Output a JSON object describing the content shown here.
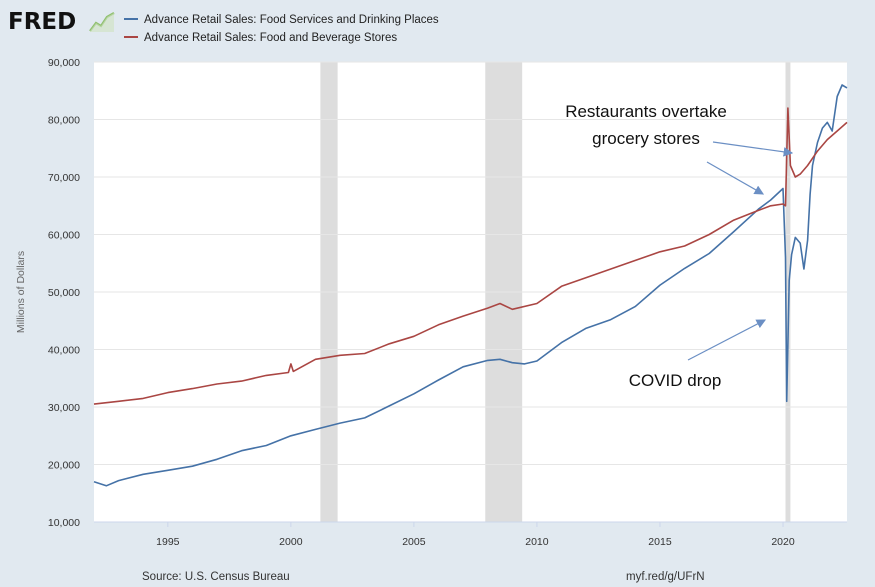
{
  "header": {
    "logo_text": "FRED",
    "logo_mark": "fred-chart-mark",
    "legend": [
      {
        "label": "Advance Retail Sales: Food Services and Drinking Places",
        "color": "#4572a7"
      },
      {
        "label": "Advance Retail Sales: Food and Beverage Stores",
        "color": "#aa4643"
      }
    ]
  },
  "footer": {
    "source": "Source: U.S. Census Bureau",
    "link": "myf.red/g/UFrN"
  },
  "annotations": {
    "overtake_line1": "Restaurants overtake",
    "overtake_line2": "grocery stores",
    "covid": "COVID drop"
  },
  "chart_data": {
    "type": "line",
    "ylabel": "Millions of Dollars",
    "ylim": [
      10000,
      90000
    ],
    "yticks": [
      10000,
      20000,
      30000,
      40000,
      50000,
      60000,
      70000,
      80000,
      90000
    ],
    "yticklabels": [
      "10,000",
      "20,000",
      "30,000",
      "40,000",
      "50,000",
      "60,000",
      "70,000",
      "80,000",
      "90,000"
    ],
    "xlim": [
      1992.0,
      2022.6
    ],
    "xticks": [
      1995,
      2000,
      2005,
      2010,
      2015,
      2020
    ],
    "xticklabels": [
      "1995",
      "2000",
      "2005",
      "2010",
      "2015",
      "2020"
    ],
    "grid": true,
    "legend_position": "top-left",
    "recessions": [
      [
        2001.2,
        2001.9
      ],
      [
        2007.9,
        2009.4
      ],
      [
        2020.1,
        2020.3
      ]
    ],
    "series": [
      {
        "name": "Advance Retail Sales: Food Services and Drinking Places",
        "color": "#4572a7",
        "x": [
          1992.0,
          1992.5,
          1993.0,
          1994.0,
          1995.0,
          1996.0,
          1997.0,
          1998.0,
          1999.0,
          2000.0,
          2001.0,
          2002.0,
          2003.0,
          2004.0,
          2005.0,
          2006.0,
          2007.0,
          2008.0,
          2008.5,
          2009.0,
          2009.5,
          2010.0,
          2011.0,
          2012.0,
          2013.0,
          2014.0,
          2015.0,
          2016.0,
          2017.0,
          2018.0,
          2019.0,
          2019.5,
          2020.0,
          2020.1,
          2020.15,
          2020.25,
          2020.35,
          2020.5,
          2020.7,
          2020.85,
          2021.0,
          2021.1,
          2021.2,
          2021.4,
          2021.6,
          2021.8,
          2022.0,
          2022.2,
          2022.4,
          2022.6
        ],
        "values": [
          17000,
          16300,
          17200,
          18300,
          19000,
          19700,
          20900,
          22400,
          23300,
          25000,
          26100,
          27200,
          28100,
          30200,
          32300,
          34700,
          37000,
          38100,
          38300,
          37700,
          37500,
          38000,
          41200,
          43700,
          45200,
          47500,
          51200,
          54100,
          56700,
          60500,
          64400,
          66000,
          68000,
          56000,
          31000,
          52000,
          56500,
          59500,
          58500,
          54000,
          59000,
          67000,
          72000,
          76000,
          78500,
          79500,
          78000,
          84000,
          86000,
          85500
        ]
      },
      {
        "name": "Advance Retail Sales: Food and Beverage Stores",
        "color": "#aa4643",
        "x": [
          1992.0,
          1993.0,
          1994.0,
          1995.0,
          1996.0,
          1997.0,
          1998.0,
          1999.0,
          1999.9,
          2000.0,
          2000.1,
          2001.0,
          2002.0,
          2003.0,
          2004.0,
          2005.0,
          2006.0,
          2007.0,
          2008.0,
          2008.5,
          2009.0,
          2010.0,
          2011.0,
          2012.0,
          2013.0,
          2014.0,
          2015.0,
          2016.0,
          2017.0,
          2018.0,
          2019.0,
          2019.5,
          2020.0,
          2020.1,
          2020.2,
          2020.3,
          2020.5,
          2020.7,
          2021.0,
          2021.4,
          2021.8,
          2022.2,
          2022.6
        ],
        "values": [
          30500,
          31000,
          31500,
          32500,
          33200,
          34000,
          34500,
          35500,
          36000,
          37500,
          36200,
          38300,
          39000,
          39300,
          41000,
          42300,
          44300,
          45800,
          47200,
          48000,
          47000,
          48000,
          51000,
          52500,
          54000,
          55500,
          57000,
          58000,
          60000,
          62500,
          64200,
          65000,
          65300,
          65000,
          82000,
          72000,
          70000,
          70500,
          72000,
          74500,
          76500,
          78000,
          79500
        ]
      }
    ]
  }
}
